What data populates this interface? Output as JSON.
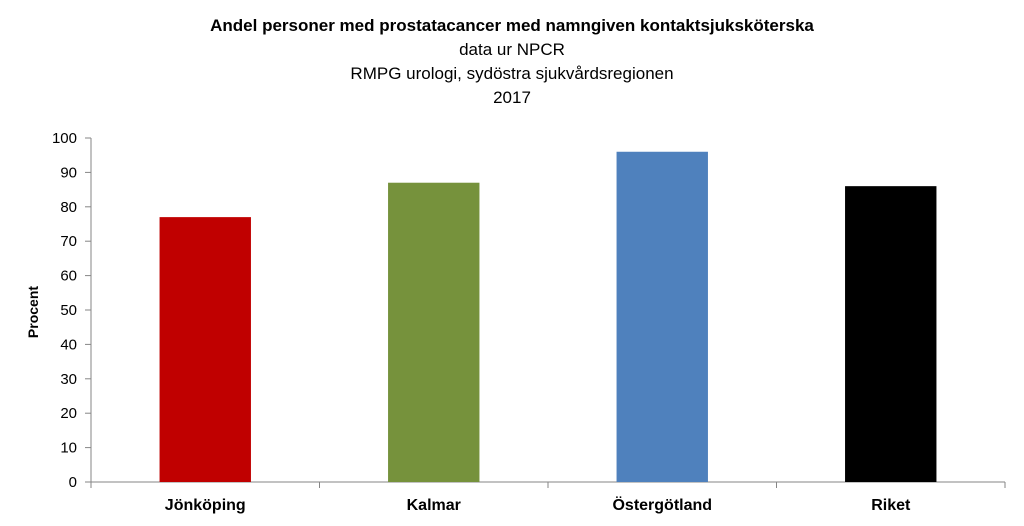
{
  "chart_data": {
    "type": "bar",
    "title": "Andel personer med prostatacancer med namngiven kontaktsjuksköterska",
    "subtitle_lines": [
      "data ur NPCR",
      "RMPG urologi, sydöstra sjukvårdsregionen",
      "2017"
    ],
    "xlabel": "",
    "ylabel": "Procent",
    "categories": [
      "Jönköping",
      "Kalmar",
      "Östergötland",
      "Riket"
    ],
    "values": [
      77,
      87,
      96,
      86
    ],
    "colors": [
      "#c00000",
      "#76923c",
      "#4f81bd",
      "#000000"
    ],
    "ylim": [
      0,
      100
    ],
    "yticks": [
      0,
      10,
      20,
      30,
      40,
      50,
      60,
      70,
      80,
      90,
      100
    ],
    "grid": false,
    "legend": "none"
  }
}
